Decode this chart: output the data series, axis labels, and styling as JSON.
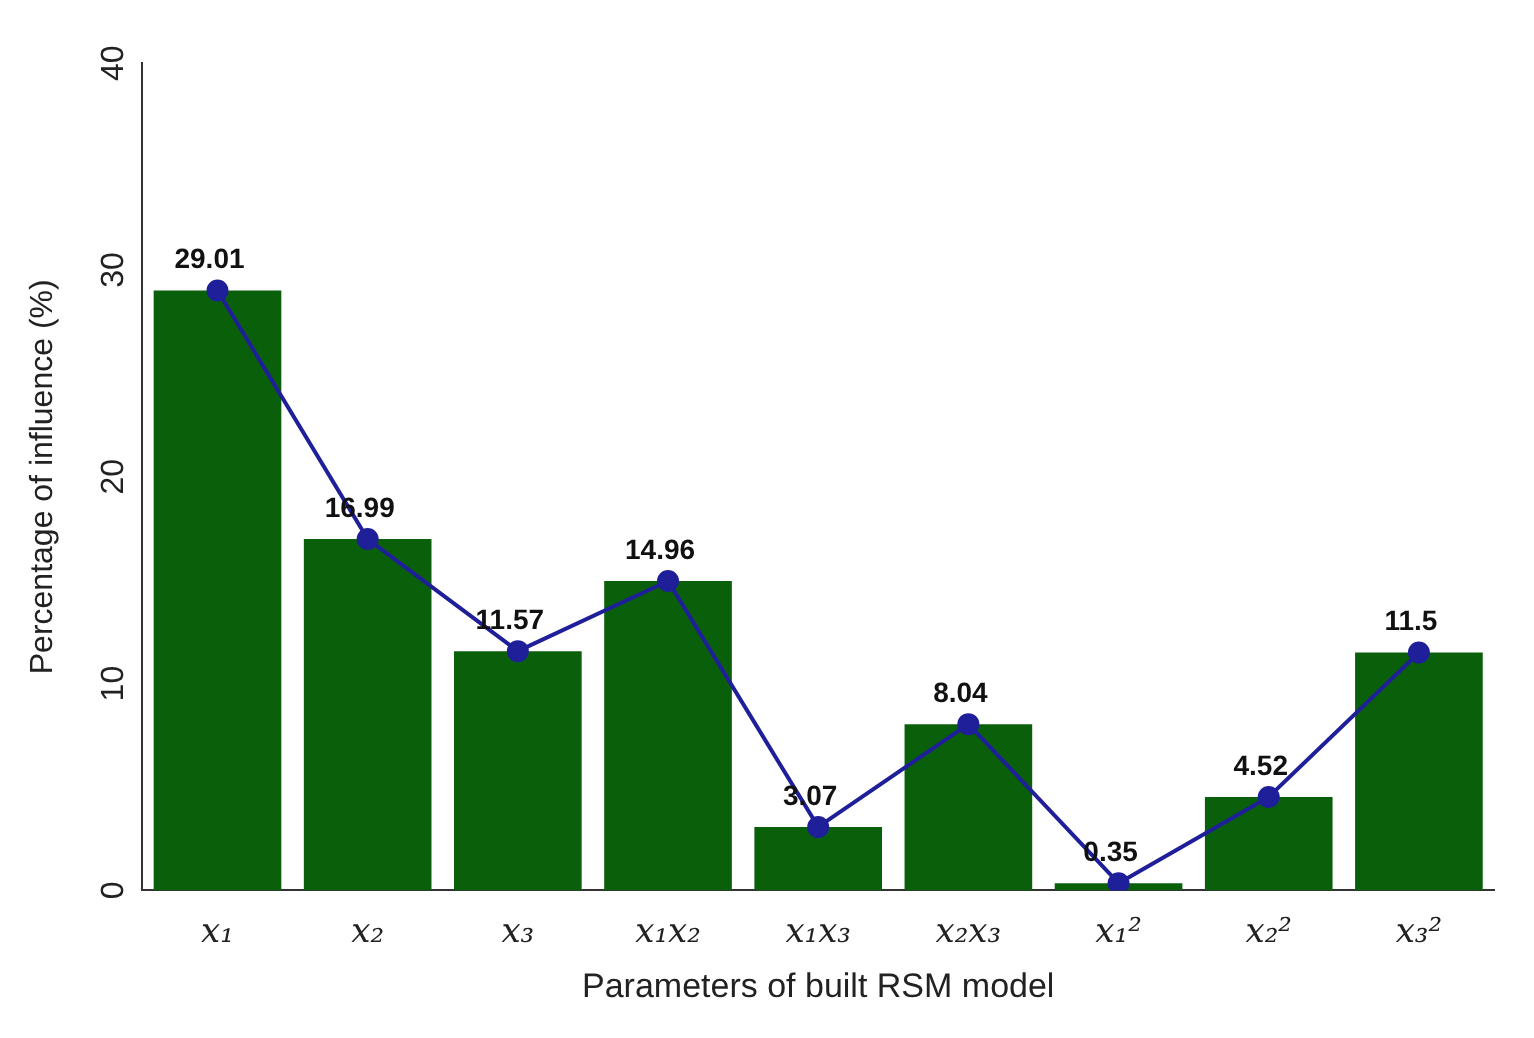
{
  "chart_data": {
    "type": "bar",
    "xlabel": "Parameters of built RSM model",
    "ylabel": "Percentage of influence (%)",
    "categories": [
      "x₁",
      "x₂",
      "x₃",
      "x₁x₂",
      "x₁x₃",
      "x₂x₃",
      "x₁²",
      "x₂²",
      "x₃²"
    ],
    "series": [
      {
        "type": "bar",
        "color": "#0a5f0a",
        "values": [
          29.01,
          16.99,
          11.57,
          14.96,
          3.07,
          8.04,
          0.35,
          4.52,
          11.5
        ],
        "value_labels": [
          "29.01",
          "16.99",
          "11.57",
          "14.96",
          "3.07",
          "8.04",
          "0.35",
          "4.52",
          "11.5"
        ]
      },
      {
        "type": "line",
        "color": "#1f1f9a",
        "values": [
          29.01,
          16.99,
          11.57,
          14.96,
          3.07,
          8.04,
          0.35,
          4.52,
          11.5
        ]
      }
    ],
    "ylim": [
      0,
      40
    ],
    "yticks": [
      0,
      10,
      20,
      30,
      40
    ],
    "grid": false,
    "legend": false,
    "marker": "circle",
    "line_style": "solid"
  }
}
